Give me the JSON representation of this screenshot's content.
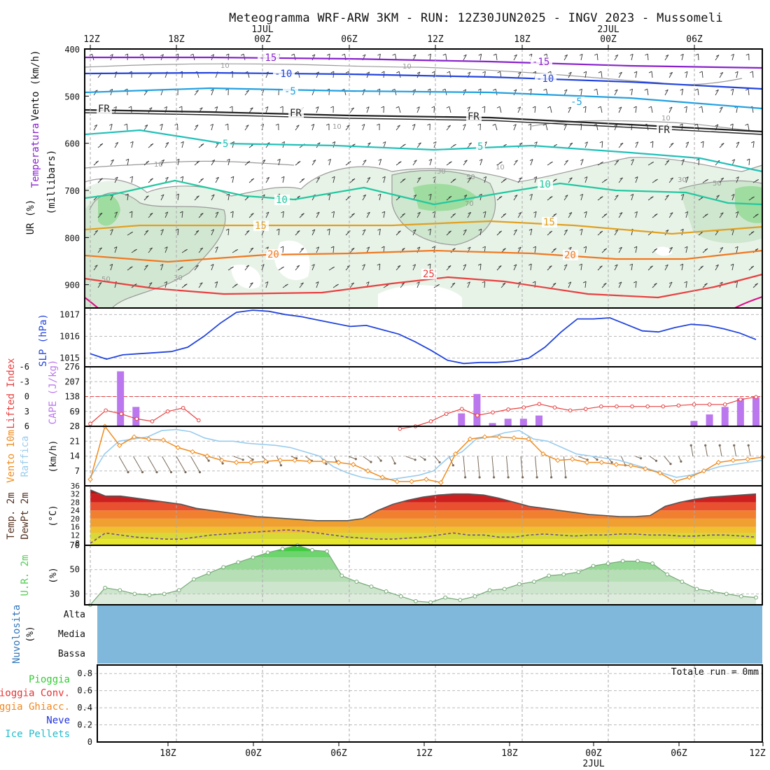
{
  "title": "Meteogramma WRF-ARW 3KM - RUN: 12Z30JUN2025 - INGV 2023 - Mussomeli",
  "colors": {
    "slp": "#2244dd",
    "cape": "#bb77ee",
    "lifted": "#e84040",
    "wind10": "#f08c1e",
    "gust": "#99ccee",
    "t2m": "#404040",
    "dewpt": "#7a4a8a",
    "rh": "#55cc55",
    "cloud": "#80b8dc",
    "t_minus15": "#8822cc",
    "t_minus10": "#2244dd",
    "t_minus5": "#22a0e0",
    "t_fr": "#202020",
    "t5": "#22c0b8",
    "t10": "#22c8a0",
    "t15": "#e0a020",
    "t20": "#f07820",
    "t25": "#e84040"
  },
  "time_axis": {
    "top_labels": [
      "12Z",
      "18Z",
      "00Z",
      "06Z",
      "12Z",
      "18Z",
      "00Z",
      "06Z"
    ],
    "top_dates": [
      "1JUL",
      "2JUL"
    ],
    "bottom_labels": [
      "18Z",
      "00Z",
      "06Z",
      "12Z",
      "18Z",
      "00Z",
      "06Z",
      "12Z"
    ],
    "bottom_date": "2JUL"
  },
  "panels": {
    "upper_air": {
      "label_wind": "Vento (km/h)",
      "label_temp": "Temperatura",
      "label_ur": "UR (%)",
      "label_mb": "(millibars)",
      "pressure_ticks": [
        "400",
        "500",
        "600",
        "700",
        "800",
        "900"
      ]
    },
    "slp": {
      "label": "SLP (hPa)",
      "ticks": [
        "1017",
        "1016",
        "1015"
      ]
    },
    "cape": {
      "label_cape": "CAPE (J/kg)",
      "label_li": "Lifted Index",
      "cape_ticks": [
        "276",
        "207",
        "138",
        "69"
      ],
      "li_ticks": [
        "-6",
        "-3",
        "0",
        "3",
        "6"
      ]
    },
    "wind10": {
      "label_wind": "Vento 10m",
      "label_gust": "Raffica",
      "unit": "(km/h)",
      "ticks": [
        "28",
        "21",
        "14",
        "7"
      ]
    },
    "temp2m": {
      "label_t": "Temp. 2m",
      "label_td": "DewPt 2m",
      "unit": "(°C)",
      "ticks": [
        "36",
        "32",
        "28",
        "24",
        "20",
        "16",
        "12",
        "8"
      ]
    },
    "rh2m": {
      "label": "U.R. 2m",
      "unit": "(%)",
      "ticks": [
        "70",
        "50",
        "30"
      ]
    },
    "clouds": {
      "label": "Nuvolosita",
      "unit": "(%)",
      "levels": [
        "Alta",
        "Media",
        "Bassa"
      ]
    },
    "precip": {
      "legend": [
        "Pioggia",
        "Pioggia Conv.",
        "Pioggia Ghiacc.",
        "Neve",
        "Ice Pellets"
      ],
      "legend_colors": [
        "#33cc33",
        "#e83030",
        "#f08820",
        "#2233dd",
        "#22bbcc"
      ],
      "ticks": [
        "0.8",
        "0.6",
        "0.4",
        "0.2",
        "0"
      ],
      "total_label": "Totale run = 0mm"
    }
  },
  "chart_data": [
    {
      "type": "line",
      "title": "SLP (hPa)",
      "ylim": [
        1014.6,
        1017.3
      ],
      "series": [
        {
          "name": "SLP",
          "values": [
            1015.2,
            1014.95,
            1015.15,
            1015.2,
            1015.25,
            1015.3,
            1015.5,
            1016.0,
            1016.6,
            1017.1,
            1017.2,
            1017.15,
            1017.0,
            1016.9,
            1016.75,
            1016.6,
            1016.45,
            1016.5,
            1016.3,
            1016.1,
            1015.75,
            1015.35,
            1014.9,
            1014.75,
            1014.8,
            1014.8,
            1014.85,
            1015.0,
            1015.5,
            1016.2,
            1016.8,
            1016.8,
            1016.85,
            1016.55,
            1016.25,
            1016.2,
            1016.4,
            1016.55,
            1016.5,
            1016.35,
            1016.15,
            1015.85
          ]
        }
      ]
    },
    {
      "type": "bar",
      "title": "CAPE (J/kg)",
      "ylim": [
        0,
        276
      ],
      "series": [
        {
          "name": "CAPE",
          "values": [
            0,
            255,
            90,
            0,
            0,
            0,
            0,
            0,
            0,
            0,
            0,
            0,
            0,
            0,
            0,
            0,
            0,
            0,
            0,
            0,
            0,
            0,
            0,
            60,
            150,
            15,
            35,
            35,
            50,
            0,
            0,
            0,
            0,
            0,
            0,
            0,
            0,
            0,
            25,
            55,
            90,
            130,
            135
          ]
        }
      ]
    },
    {
      "type": "line",
      "title": "Lifted Index",
      "ylim": [
        6,
        -6
      ],
      "series": [
        {
          "name": "Lifted Index",
          "values": [
            5.5,
            2.8,
            3.5,
            4.5,
            5.0,
            3.0,
            2.3,
            4.8,
            null,
            null,
            null,
            null,
            null,
            null,
            null,
            null,
            null,
            null,
            null,
            null,
            6.5,
            6.0,
            5.0,
            3.5,
            2.5,
            3.8,
            3.2,
            2.6,
            2.2,
            1.5,
            2.2,
            2.8,
            2.5,
            2.0,
            2.0,
            2.0,
            2.0,
            2.0,
            1.8,
            1.6,
            1.6,
            1.6,
            0.6,
            0.1
          ]
        }
      ]
    },
    {
      "type": "line",
      "title": "Vento 10m / Raffica (km/h)",
      "ylim": [
        0,
        28
      ],
      "series": [
        {
          "name": "Vento 10m",
          "values": [
            3,
            28,
            19,
            23,
            22,
            21.5,
            18,
            16,
            14,
            12,
            11,
            11,
            11.5,
            12,
            12,
            11.5,
            11.5,
            11,
            10,
            7,
            4,
            2,
            2,
            3,
            1.5,
            15,
            22,
            23,
            23,
            22.5,
            22,
            15,
            12,
            12.5,
            11,
            11,
            10,
            9.5,
            8,
            6,
            2,
            4,
            7,
            11,
            12,
            12.5,
            13.5
          ]
        },
        {
          "name": "Raffica",
          "values": [
            4,
            15,
            21,
            22,
            23,
            26,
            26.5,
            25.5,
            22.5,
            21,
            21,
            20,
            19.5,
            19,
            18,
            16,
            14,
            9,
            6,
            4,
            3,
            3,
            4,
            5,
            7,
            13,
            16,
            22,
            23,
            25,
            26,
            22,
            21,
            18,
            15,
            14,
            13,
            12,
            10,
            8,
            6,
            4,
            5,
            7,
            9,
            10,
            11,
            12
          ]
        }
      ]
    },
    {
      "type": "area",
      "title": "Temp. 2m / DewPt 2m (°C)",
      "ylim": [
        7,
        36
      ],
      "series": [
        {
          "name": "Temp. 2m",
          "values": [
            34,
            31,
            31,
            30,
            29,
            28,
            27,
            25,
            24,
            23,
            22,
            21,
            20.5,
            20,
            19.5,
            19,
            19,
            19,
            20,
            24,
            27,
            29,
            30.5,
            31.5,
            32,
            32,
            31.5,
            30,
            28,
            26,
            25,
            24,
            23,
            22,
            21.5,
            21,
            21,
            21.5,
            26,
            28,
            29.5,
            30.5,
            31,
            31.5,
            32
          ]
        },
        {
          "name": "DewPt 2m",
          "values": [
            8,
            13,
            12,
            11,
            10.5,
            10,
            10,
            11,
            12,
            12.5,
            13,
            13.5,
            14,
            14.5,
            14,
            13,
            12,
            11,
            10.5,
            10,
            10,
            10.5,
            11,
            12,
            13,
            12,
            12,
            11,
            11,
            12,
            12.5,
            12,
            11.5,
            12,
            12,
            12.5,
            12.5,
            12,
            12,
            11.5,
            11.5,
            12,
            12,
            11.5,
            11
          ]
        }
      ]
    },
    {
      "type": "area",
      "title": "U.R. 2m (%)",
      "ylim": [
        21,
        70
      ],
      "series": [
        {
          "name": "U.R. 2m",
          "values": [
            21,
            35,
            33,
            30,
            29,
            30,
            33,
            42,
            47,
            52,
            56,
            60,
            64,
            67,
            70,
            66,
            65,
            45,
            40,
            36,
            32,
            28,
            24,
            23,
            27,
            25,
            28,
            33,
            34,
            38,
            40,
            45,
            46,
            48,
            53,
            55,
            57,
            57,
            55,
            46,
            40,
            34,
            32,
            30,
            28,
            27
          ]
        }
      ]
    },
    {
      "type": "area",
      "title": "Nuvolosita (%)",
      "ylim": [
        0,
        100
      ],
      "series": [
        {
          "name": "Nuvolosita",
          "values": [
            100
          ]
        }
      ]
    },
    {
      "type": "bar",
      "title": "Pioggia",
      "ylim": [
        0,
        0.9
      ],
      "series": [
        {
          "name": "Pioggia",
          "values": [
            0
          ]
        }
      ]
    }
  ]
}
